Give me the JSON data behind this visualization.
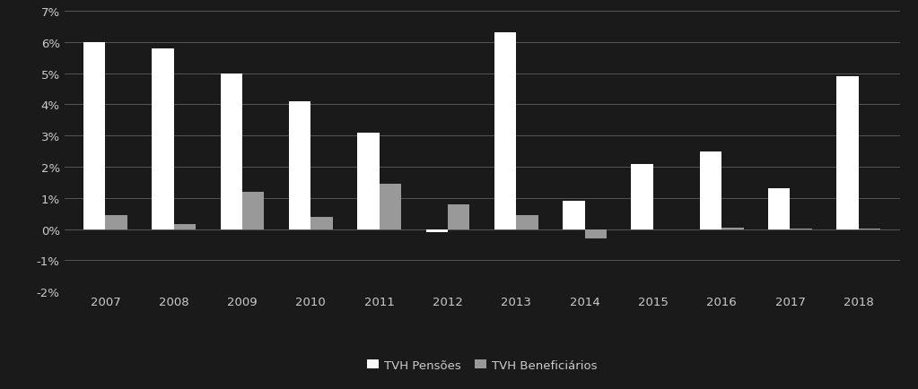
{
  "years": [
    2007,
    2008,
    2009,
    2010,
    2011,
    2012,
    2013,
    2014,
    2015,
    2016,
    2017,
    2018
  ],
  "tvh_pensoes": [
    0.06,
    0.058,
    0.05,
    0.041,
    0.031,
    -0.001,
    0.063,
    0.009,
    0.021,
    0.025,
    0.013,
    0.049
  ],
  "tvh_beneficiarios": [
    0.0045,
    0.0015,
    0.012,
    0.004,
    0.0145,
    0.008,
    0.0045,
    -0.003,
    0.0,
    0.0005,
    0.0001,
    0.0001
  ],
  "bar_color_pensoes": "#ffffff",
  "bar_color_beneficiarios": "#999999",
  "background_color": "#1a1a1a",
  "text_color": "#cccccc",
  "grid_color": "#555555",
  "ylim": [
    -0.02,
    0.07
  ],
  "yticks": [
    -0.02,
    -0.01,
    0.0,
    0.01,
    0.02,
    0.03,
    0.04,
    0.05,
    0.06,
    0.07
  ],
  "legend_label_pensoes": "TVH Pensões",
  "legend_label_beneficiarios": "TVH Beneficiários",
  "bar_width": 0.32
}
